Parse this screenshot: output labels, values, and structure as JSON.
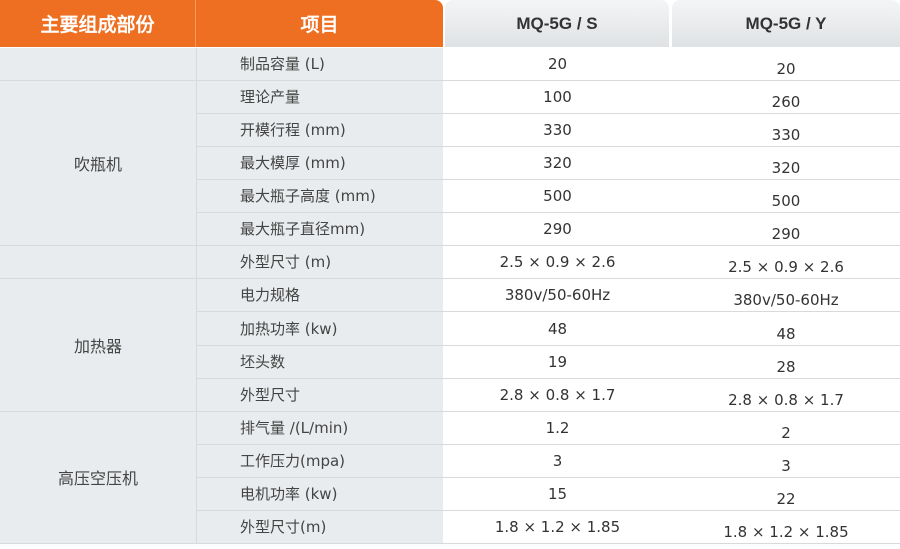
{
  "header": {
    "component": "主要组成部份",
    "item": "项目",
    "model_s": "MQ-5G / S",
    "model_y": "MQ-5G / Y"
  },
  "groups": [
    {
      "name": "",
      "rows": [
        {
          "item": "制品容量 (L)",
          "s": "20",
          "y": "20"
        }
      ]
    },
    {
      "name": "吹瓶机",
      "rows": [
        {
          "item": "理论产量",
          "s": "100",
          "y": "260"
        },
        {
          "item": "开模行程 (mm)",
          "s": "330",
          "y": "330"
        },
        {
          "item": "最大模厚 (mm)",
          "s": "320",
          "y": "320"
        },
        {
          "item": "最大瓶子高度 (mm)",
          "s": "500",
          "y": "500"
        },
        {
          "item": "最大瓶子直径mm)",
          "s": "290",
          "y": "290"
        }
      ]
    },
    {
      "name": "",
      "rows": [
        {
          "item": "外型尺寸 (m)",
          "s": "2.5 × 0.9 × 2.6",
          "y": "2.5 × 0.9 × 2.6"
        }
      ]
    },
    {
      "name": "加热器",
      "rows": [
        {
          "item": "电力规格",
          "s": "380v/50-60Hz",
          "y": "380v/50-60Hz"
        },
        {
          "item": "加热功率 (kw)",
          "s": "48",
          "y": "48"
        },
        {
          "item": "坯头数",
          "s": "19",
          "y": "28"
        },
        {
          "item": "外型尺寸",
          "s": "2.8 × 0.8 × 1.7",
          "y": "2.8 × 0.8 × 1.7"
        }
      ]
    },
    {
      "name": "高压空压机",
      "rows": [
        {
          "item": "排气量 /(L/min)",
          "s": "1.2",
          "y": "2"
        },
        {
          "item": "工作压力(mpa)",
          "s": "3",
          "y": "3"
        },
        {
          "item": "电机功率 (kw)",
          "s": "15",
          "y": "22"
        },
        {
          "item": "外型尺寸(m)",
          "s": "1.8 × 1.2 × 1.85",
          "y": "1.8 × 1.2 × 1.85"
        }
      ]
    }
  ],
  "colors": {
    "accent": "#ee6f21",
    "left_bg": "#e9ecee"
  }
}
